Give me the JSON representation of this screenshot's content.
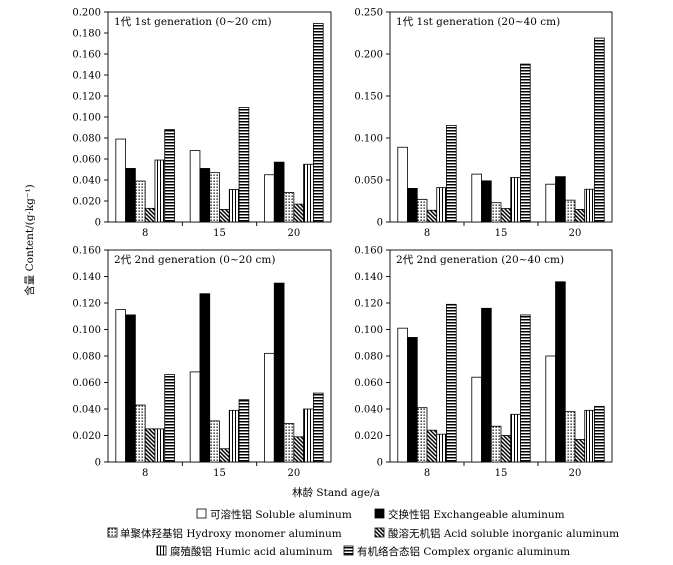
{
  "chart_data": {
    "type": "bar",
    "ylabel": "含量  Content/(g·kg⁻¹)",
    "xlabel": "林龄  Stand age/a",
    "legend": [
      {
        "key": "soluble",
        "label": "可溶性铝  Soluble aluminum",
        "pattern": "white"
      },
      {
        "key": "exchangeable",
        "label": "交换性铝  Exchangeable aluminum",
        "pattern": "black"
      },
      {
        "key": "hydroxy",
        "label": "单聚体羟基铝  Hydroxy monomer aluminum",
        "pattern": "dots"
      },
      {
        "key": "acid",
        "label": "酸溶无机铝  Acid soluble inorganic aluminum",
        "pattern": "diagonal"
      },
      {
        "key": "humic",
        "label": "腐殖酸铝  Humic acid aluminum",
        "pattern": "vertical"
      },
      {
        "key": "complex",
        "label": "有机络合态铝  Complex organic aluminum",
        "pattern": "horizontal"
      }
    ],
    "charts": [
      {
        "title": "1代  1st generation (0~20 cm)",
        "categories": [
          "8",
          "15",
          "20"
        ],
        "ylim": [
          0,
          0.2
        ],
        "yticks": [
          "0",
          "0.020",
          "0.040",
          "0.060",
          "0.080",
          "0.100",
          "0.120",
          "0.140",
          "0.160",
          "0.180",
          "0.200"
        ],
        "series": [
          {
            "name": "soluble",
            "values": [
              0.079,
              0.068,
              0.045
            ]
          },
          {
            "name": "exchangeable",
            "values": [
              0.051,
              0.051,
              0.057
            ]
          },
          {
            "name": "hydroxy",
            "values": [
              0.039,
              0.047,
              0.028
            ]
          },
          {
            "name": "acid",
            "values": [
              0.013,
              0.012,
              0.017
            ]
          },
          {
            "name": "humic",
            "values": [
              0.059,
              0.031,
              0.055
            ]
          },
          {
            "name": "complex",
            "values": [
              0.088,
              0.109,
              0.189
            ]
          }
        ]
      },
      {
        "title": "1代  1st generation (20~40 cm)",
        "categories": [
          "8",
          "15",
          "20"
        ],
        "ylim": [
          0,
          0.25
        ],
        "yticks": [
          "0",
          "0.050",
          "0.100",
          "0.150",
          "0.200",
          "0.250"
        ],
        "series": [
          {
            "name": "soluble",
            "values": [
              0.089,
              0.057,
              0.045
            ]
          },
          {
            "name": "exchangeable",
            "values": [
              0.04,
              0.049,
              0.054
            ]
          },
          {
            "name": "hydroxy",
            "values": [
              0.027,
              0.023,
              0.026
            ]
          },
          {
            "name": "acid",
            "values": [
              0.014,
              0.016,
              0.015
            ]
          },
          {
            "name": "humic",
            "values": [
              0.041,
              0.053,
              0.039
            ]
          },
          {
            "name": "complex",
            "values": [
              0.115,
              0.188,
              0.219
            ]
          }
        ]
      },
      {
        "title": "2代  2nd  generation  (0~20 cm)",
        "categories": [
          "8",
          "15",
          "20"
        ],
        "ylim": [
          0,
          0.16
        ],
        "yticks": [
          "0",
          "0.020",
          "0.040",
          "0.060",
          "0.080",
          "0.100",
          "0.120",
          "0.140",
          "0.160"
        ],
        "series": [
          {
            "name": "soluble",
            "values": [
              0.115,
              0.068,
              0.082
            ]
          },
          {
            "name": "exchangeable",
            "values": [
              0.111,
              0.127,
              0.135
            ]
          },
          {
            "name": "hydroxy",
            "values": [
              0.043,
              0.031,
              0.029
            ]
          },
          {
            "name": "acid",
            "values": [
              0.025,
              0.01,
              0.019
            ]
          },
          {
            "name": "humic",
            "values": [
              0.025,
              0.039,
              0.04
            ]
          },
          {
            "name": "complex",
            "values": [
              0.066,
              0.047,
              0.052
            ]
          }
        ]
      },
      {
        "title": "2代  2nd  generation  (20~40 cm)",
        "categories": [
          "8",
          "15",
          "20"
        ],
        "ylim": [
          0,
          0.16
        ],
        "yticks": [
          "0",
          "0.020",
          "0.040",
          "0.060",
          "0.080",
          "0.100",
          "0.120",
          "0.140",
          "0.160"
        ],
        "series": [
          {
            "name": "soluble",
            "values": [
              0.101,
              0.064,
              0.08
            ]
          },
          {
            "name": "exchangeable",
            "values": [
              0.094,
              0.116,
              0.136
            ]
          },
          {
            "name": "hydroxy",
            "values": [
              0.041,
              0.027,
              0.038
            ]
          },
          {
            "name": "acid",
            "values": [
              0.024,
              0.02,
              0.017
            ]
          },
          {
            "name": "humic",
            "values": [
              0.021,
              0.036,
              0.039
            ]
          },
          {
            "name": "complex",
            "values": [
              0.119,
              0.111,
              0.042
            ]
          }
        ]
      }
    ]
  }
}
